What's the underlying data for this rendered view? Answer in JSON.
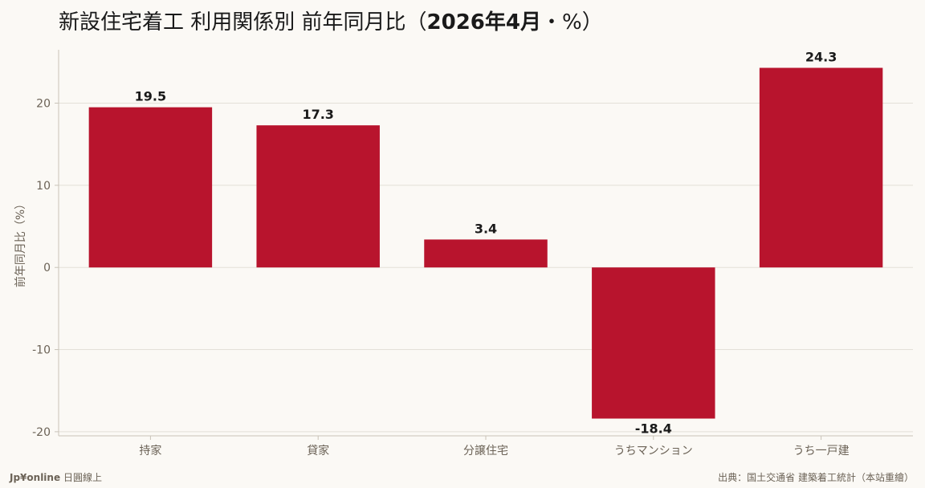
{
  "title": {
    "main": "新設住宅着工 利用関係別 前年同月比（",
    "bold": "2026年4月",
    "tail": "・%）"
  },
  "footer": {
    "brand": "Jp¥online",
    "brand_suffix": "日圓線上",
    "source": "出典：国土交通省 建築着工統計（本站重繪）"
  },
  "colors": {
    "bar": "#b8142d",
    "grid": "#e4e0d8",
    "axis": "#c9c3b8",
    "tick_text": "#6b6256",
    "label_text": "#1a1a1a"
  },
  "chart_data": {
    "type": "bar",
    "categories": [
      "持家",
      "貸家",
      "分譲住宅",
      "うちマンション",
      "うち一戸建"
    ],
    "values": [
      19.5,
      17.3,
      3.4,
      -18.4,
      24.3
    ],
    "data_labels": [
      "19.5",
      "17.3",
      "3.4",
      "-18.4",
      "24.3"
    ],
    "xlabel": "",
    "ylabel": "前年同月比（%）",
    "ylim": [
      -20.5,
      26.5
    ],
    "yticks": [
      -20,
      -10,
      0,
      10,
      20
    ],
    "grid": true,
    "legend": "none"
  }
}
